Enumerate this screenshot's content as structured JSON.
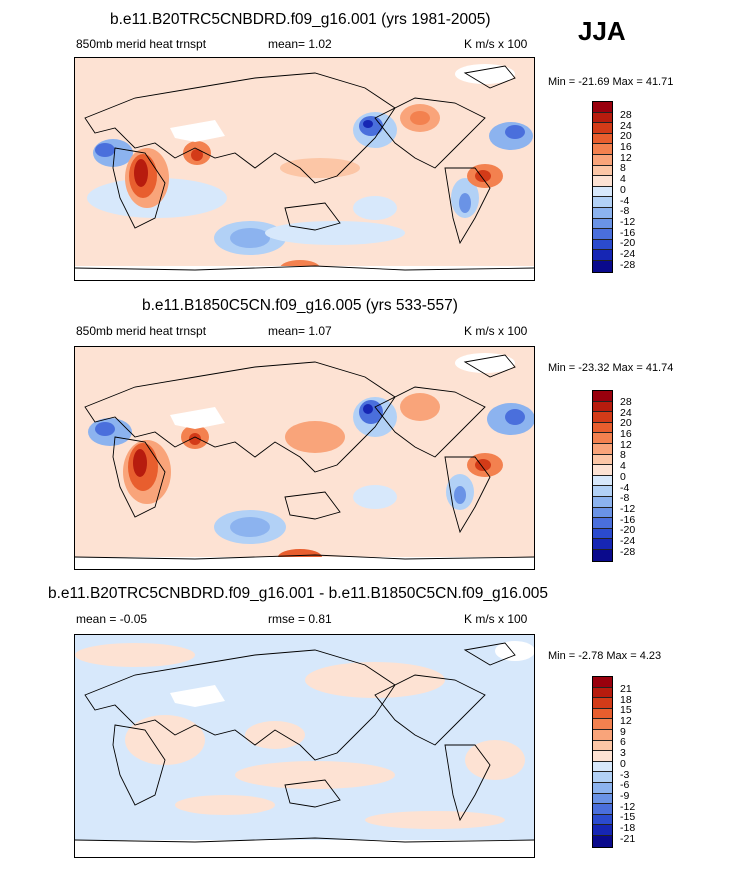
{
  "season": "JJA",
  "panels": [
    {
      "title": "b.e11.B20TRC5CNBDRD.f09_g16.001 (yrs 1981-2005)",
      "left_label": "850mb merid heat trnspt",
      "center_label": "mean=   1.02",
      "right_label": "K m/s x 100",
      "minmax": "Min = -21.69 Max =  41.71",
      "colorbar_labels": [
        "28",
        "24",
        "20",
        "16",
        "12",
        "8",
        "4",
        "0",
        "-4",
        "-8",
        "-12",
        "-16",
        "-20",
        "-24",
        "-28"
      ],
      "colorbar_colors": [
        "#99000d",
        "#b71c0e",
        "#d33b18",
        "#e85e2e",
        "#f3814f",
        "#f9a47a",
        "#fcc6a6",
        "#fde2d3",
        "#d7e8fb",
        "#b2d1f6",
        "#8cb3ef",
        "#6a93e6",
        "#4a6fdc",
        "#2b4bce",
        "#1626b4",
        "#0a0a8c"
      ]
    },
    {
      "title": "b.e11.B1850C5CN.f09_g16.005 (yrs 533-557)",
      "left_label": "850mb merid heat trnspt",
      "center_label": "mean=   1.07",
      "right_label": "K m/s x 100",
      "minmax": "Min = -23.32 Max =  41.74",
      "colorbar_labels": [
        "28",
        "24",
        "20",
        "16",
        "12",
        "8",
        "4",
        "0",
        "-4",
        "-8",
        "-12",
        "-16",
        "-20",
        "-24",
        "-28"
      ],
      "colorbar_colors": [
        "#99000d",
        "#b71c0e",
        "#d33b18",
        "#e85e2e",
        "#f3814f",
        "#f9a47a",
        "#fcc6a6",
        "#fde2d3",
        "#d7e8fb",
        "#b2d1f6",
        "#8cb3ef",
        "#6a93e6",
        "#4a6fdc",
        "#2b4bce",
        "#1626b4",
        "#0a0a8c"
      ]
    },
    {
      "title": "b.e11.B20TRC5CNBDRD.f09_g16.001 - b.e11.B1850C5CN.f09_g16.005",
      "left_label": "mean =  -0.05",
      "center_label": "rmse =   0.81",
      "right_label": "K m/s x 100",
      "minmax": "Min =  -2.78 Max =   4.23",
      "colorbar_labels": [
        "21",
        "18",
        "15",
        "12",
        "9",
        "6",
        "3",
        "0",
        "-3",
        "-6",
        "-9",
        "-12",
        "-15",
        "-18",
        "-21"
      ],
      "colorbar_colors": [
        "#99000d",
        "#b71c0e",
        "#d33b18",
        "#e85e2e",
        "#f3814f",
        "#f9a47a",
        "#fcc6a6",
        "#fde2d3",
        "#d7e8fb",
        "#b2d1f6",
        "#8cb3ef",
        "#6a93e6",
        "#4a6fdc",
        "#2b4bce",
        "#1626b4",
        "#0a0a8c"
      ]
    }
  ]
}
